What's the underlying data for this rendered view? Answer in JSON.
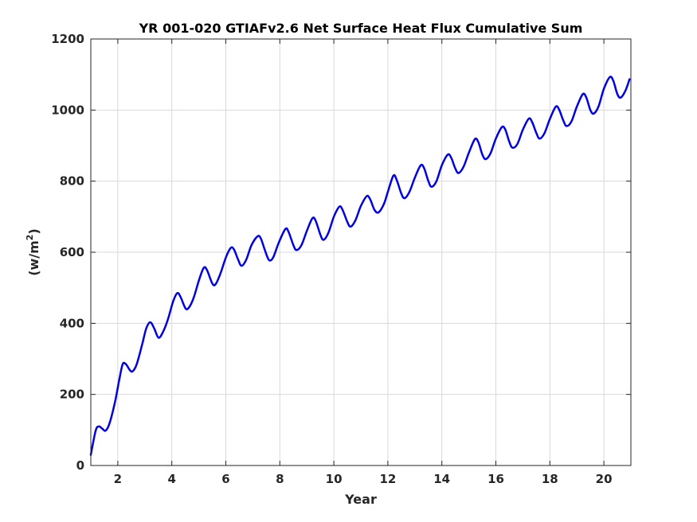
{
  "chart_data": {
    "type": "line",
    "title": "YR 001-020 GTIAFv2.6 Net Surface Heat Flux  Cumulative Sum",
    "xlabel": "Year",
    "ylabel_base": "(w/m",
    "ylabel_sup": "2",
    "ylabel_close": ")",
    "xlim": [
      1,
      21
    ],
    "ylim": [
      0,
      1200
    ],
    "xticks": [
      2,
      4,
      6,
      8,
      10,
      12,
      14,
      16,
      18,
      20
    ],
    "yticks": [
      0,
      200,
      400,
      600,
      800,
      1000,
      1200
    ],
    "grid": true,
    "line_color": "#0000e6",
    "series": [
      {
        "keypoints": [
          [
            1.0,
            30
          ],
          [
            1.18,
            98
          ],
          [
            1.3,
            110
          ],
          [
            1.42,
            104
          ],
          [
            1.55,
            98
          ],
          [
            1.7,
            120
          ],
          [
            1.9,
            180
          ],
          [
            2.05,
            240
          ],
          [
            2.18,
            285
          ],
          [
            2.3,
            285
          ],
          [
            2.45,
            268
          ],
          [
            2.55,
            265
          ],
          [
            2.7,
            285
          ],
          [
            2.9,
            340
          ],
          [
            3.05,
            385
          ],
          [
            3.2,
            403
          ],
          [
            3.35,
            385
          ],
          [
            3.5,
            360
          ],
          [
            3.65,
            372
          ],
          [
            3.85,
            410
          ],
          [
            4.05,
            462
          ],
          [
            4.2,
            485
          ],
          [
            4.32,
            475
          ],
          [
            4.5,
            443
          ],
          [
            4.62,
            443
          ],
          [
            4.8,
            470
          ],
          [
            5.0,
            520
          ],
          [
            5.18,
            556
          ],
          [
            5.3,
            550
          ],
          [
            5.5,
            512
          ],
          [
            5.62,
            510
          ],
          [
            5.8,
            540
          ],
          [
            6.0,
            585
          ],
          [
            6.18,
            612
          ],
          [
            6.3,
            608
          ],
          [
            6.45,
            580
          ],
          [
            6.58,
            562
          ],
          [
            6.75,
            578
          ],
          [
            6.95,
            620
          ],
          [
            7.18,
            645
          ],
          [
            7.3,
            638
          ],
          [
            7.45,
            605
          ],
          [
            7.6,
            578
          ],
          [
            7.75,
            585
          ],
          [
            7.95,
            625
          ],
          [
            8.2,
            665
          ],
          [
            8.32,
            658
          ],
          [
            8.5,
            620
          ],
          [
            8.62,
            606
          ],
          [
            8.8,
            620
          ],
          [
            9.0,
            660
          ],
          [
            9.2,
            695
          ],
          [
            9.32,
            690
          ],
          [
            9.5,
            650
          ],
          [
            9.62,
            635
          ],
          [
            9.8,
            655
          ],
          [
            10.0,
            700
          ],
          [
            10.2,
            728
          ],
          [
            10.32,
            720
          ],
          [
            10.5,
            685
          ],
          [
            10.62,
            672
          ],
          [
            10.8,
            690
          ],
          [
            11.0,
            730
          ],
          [
            11.22,
            758
          ],
          [
            11.35,
            748
          ],
          [
            11.5,
            720
          ],
          [
            11.65,
            712
          ],
          [
            11.85,
            735
          ],
          [
            12.0,
            770
          ],
          [
            12.2,
            815
          ],
          [
            12.32,
            805
          ],
          [
            12.5,
            765
          ],
          [
            12.62,
            752
          ],
          [
            12.8,
            770
          ],
          [
            13.0,
            810
          ],
          [
            13.22,
            845
          ],
          [
            13.35,
            835
          ],
          [
            13.5,
            800
          ],
          [
            13.62,
            784
          ],
          [
            13.8,
            800
          ],
          [
            14.0,
            845
          ],
          [
            14.22,
            875
          ],
          [
            14.35,
            865
          ],
          [
            14.5,
            835
          ],
          [
            14.62,
            823
          ],
          [
            14.8,
            840
          ],
          [
            15.0,
            880
          ],
          [
            15.22,
            918
          ],
          [
            15.35,
            910
          ],
          [
            15.5,
            875
          ],
          [
            15.62,
            862
          ],
          [
            15.8,
            878
          ],
          [
            16.0,
            920
          ],
          [
            16.22,
            952
          ],
          [
            16.35,
            945
          ],
          [
            16.5,
            910
          ],
          [
            16.62,
            894
          ],
          [
            16.8,
            905
          ],
          [
            17.0,
            945
          ],
          [
            17.22,
            976
          ],
          [
            17.35,
            965
          ],
          [
            17.5,
            935
          ],
          [
            17.62,
            920
          ],
          [
            17.8,
            935
          ],
          [
            18.0,
            975
          ],
          [
            18.22,
            1010
          ],
          [
            18.35,
            1000
          ],
          [
            18.5,
            970
          ],
          [
            18.62,
            955
          ],
          [
            18.8,
            968
          ],
          [
            19.0,
            1010
          ],
          [
            19.22,
            1045
          ],
          [
            19.35,
            1035
          ],
          [
            19.5,
            1000
          ],
          [
            19.62,
            990
          ],
          [
            19.8,
            1010
          ],
          [
            20.0,
            1060
          ],
          [
            20.22,
            1093
          ],
          [
            20.35,
            1082
          ],
          [
            20.5,
            1045
          ],
          [
            20.62,
            1035
          ],
          [
            20.8,
            1055
          ],
          [
            20.95,
            1087
          ]
        ]
      }
    ]
  }
}
